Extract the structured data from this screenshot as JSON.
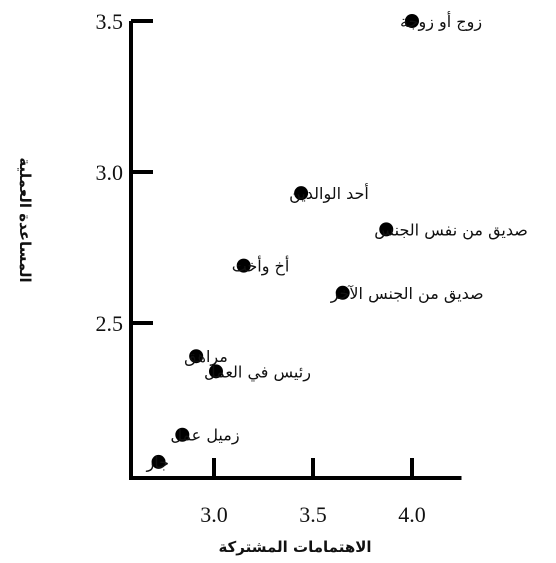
{
  "chart_data": {
    "type": "scatter",
    "xlabel": "الاهتمامات المشتركة",
    "ylabel": "المساعدة العملية",
    "xlim": [
      2.6,
      4.25
    ],
    "ylim": [
      2.0,
      3.5
    ],
    "x_ticks": [
      "3.0",
      "3.5",
      "4.0"
    ],
    "y_ticks": [
      "2.5",
      "3.0",
      "3.5"
    ],
    "grid": false,
    "points": [
      {
        "label": "زوج أو زوجة",
        "x": 4.0,
        "y": 3.5
      },
      {
        "label": "أحد الوالدين",
        "x": 3.44,
        "y": 2.93
      },
      {
        "label": "صديق من نفس الجنس",
        "x": 3.87,
        "y": 2.81
      },
      {
        "label": "أخ وأخت",
        "x": 3.15,
        "y": 2.69
      },
      {
        "label": "صديق من الجنس الآخر",
        "x": 3.65,
        "y": 2.6
      },
      {
        "label": "مراهق",
        "x": 2.91,
        "y": 2.39
      },
      {
        "label": "رئيس في العمل",
        "x": 3.01,
        "y": 2.34
      },
      {
        "label": "زميل عمل",
        "x": 2.84,
        "y": 2.13
      },
      {
        "label": "جار",
        "x": 2.72,
        "y": 2.04
      }
    ]
  }
}
